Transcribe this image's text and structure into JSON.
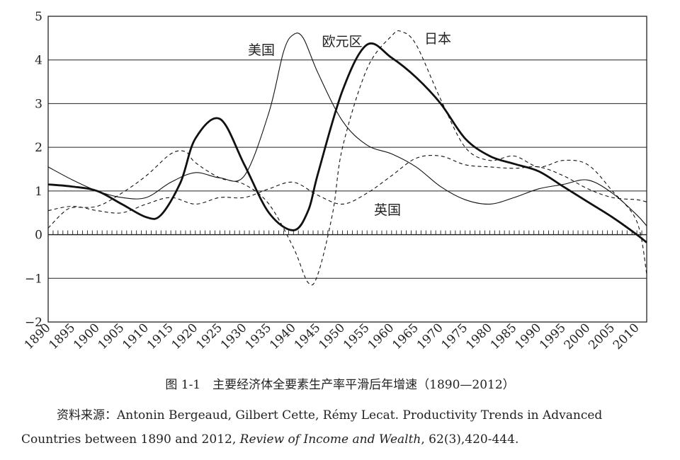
{
  "chart_data": {
    "type": "line",
    "x_ticks": [
      "1890",
      "1895",
      "1900",
      "1905",
      "1910",
      "1915",
      "1920",
      "1925",
      "1930",
      "1935",
      "1940",
      "1945",
      "1950",
      "1955",
      "1960",
      "1965",
      "1970",
      "1975",
      "1980",
      "1985",
      "1990",
      "1995",
      "2000",
      "2005",
      "2010"
    ],
    "y_ticks": [
      "5",
      "4",
      "3",
      "2",
      "1",
      "0",
      "−1",
      "−2"
    ],
    "xlim": [
      1890,
      2012
    ],
    "ylim": [
      -2,
      5
    ],
    "grid": "horizontal",
    "series": [
      {
        "name": "美国",
        "style": "thin-solid",
        "x": [
          1890,
          1895,
          1900,
          1905,
          1910,
          1915,
          1920,
          1925,
          1930,
          1935,
          1938,
          1940,
          1942,
          1945,
          1950,
          1955,
          1960,
          1965,
          1970,
          1975,
          1980,
          1985,
          1990,
          1995,
          2000,
          2005,
          2010,
          2012
        ],
        "y": [
          1.55,
          1.25,
          1.0,
          0.85,
          0.85,
          1.2,
          1.42,
          1.3,
          1.35,
          2.8,
          4.2,
          4.58,
          4.5,
          3.7,
          2.6,
          2.05,
          1.85,
          1.55,
          1.1,
          0.8,
          0.7,
          0.85,
          1.05,
          1.15,
          1.25,
          0.95,
          0.45,
          0.2
        ]
      },
      {
        "name": "欧元区",
        "style": "thick-solid",
        "x": [
          1890,
          1895,
          1900,
          1905,
          1910,
          1913,
          1917,
          1920,
          1925,
          1930,
          1935,
          1940,
          1943,
          1945,
          1950,
          1955,
          1960,
          1965,
          1970,
          1975,
          1980,
          1985,
          1990,
          1995,
          2000,
          2005,
          2010,
          2012
        ],
        "y": [
          1.15,
          1.1,
          1.0,
          0.7,
          0.4,
          0.45,
          1.2,
          2.2,
          2.65,
          1.6,
          0.5,
          0.1,
          0.55,
          1.4,
          3.3,
          4.35,
          4.05,
          3.6,
          3.0,
          2.2,
          1.8,
          1.62,
          1.45,
          1.1,
          0.75,
          0.4,
          0.0,
          -0.18
        ]
      },
      {
        "name": "日本",
        "style": "dashed",
        "x": [
          1890,
          1893,
          1895,
          1900,
          1905,
          1910,
          1915,
          1918,
          1920,
          1925,
          1930,
          1935,
          1940,
          1943,
          1945,
          1948,
          1950,
          1955,
          1960,
          1962,
          1965,
          1970,
          1975,
          1980,
          1985,
          1990,
          1995,
          2000,
          2005,
          2010,
          2012
        ],
        "y": [
          0.15,
          0.5,
          0.62,
          0.65,
          0.95,
          1.35,
          1.85,
          1.9,
          1.65,
          1.3,
          1.15,
          0.7,
          -0.3,
          -1.1,
          -0.9,
          0.5,
          2.0,
          3.8,
          4.55,
          4.65,
          4.35,
          3.1,
          2.0,
          1.7,
          1.8,
          1.55,
          1.7,
          1.6,
          1.0,
          0.3,
          -0.9
        ]
      },
      {
        "name": "英国",
        "style": "dashed",
        "x": [
          1890,
          1895,
          1900,
          1905,
          1910,
          1915,
          1920,
          1925,
          1930,
          1935,
          1940,
          1945,
          1950,
          1955,
          1960,
          1965,
          1970,
          1975,
          1980,
          1985,
          1990,
          1995,
          2000,
          2005,
          2010,
          2012
        ],
        "y": [
          0.55,
          0.65,
          0.55,
          0.5,
          0.7,
          0.85,
          0.7,
          0.85,
          0.85,
          1.05,
          1.2,
          0.9,
          0.7,
          0.95,
          1.35,
          1.75,
          1.8,
          1.6,
          1.55,
          1.52,
          1.55,
          1.35,
          1.05,
          0.85,
          0.8,
          0.75
        ]
      }
    ]
  },
  "caption": "图 1-1　主要经济体全要素生产率平滑后年增速（1890—2012）",
  "source": {
    "line1": "资料来源：Antonin Bergeaud, Gilbert Cette, Rémy Lecat. Productivity Trends in Advanced",
    "line2_before": "Countries between 1890 and 2012, ",
    "line2_italic": "Review of Income and Wealth",
    "line2_after": ", 62(3),420-444."
  }
}
